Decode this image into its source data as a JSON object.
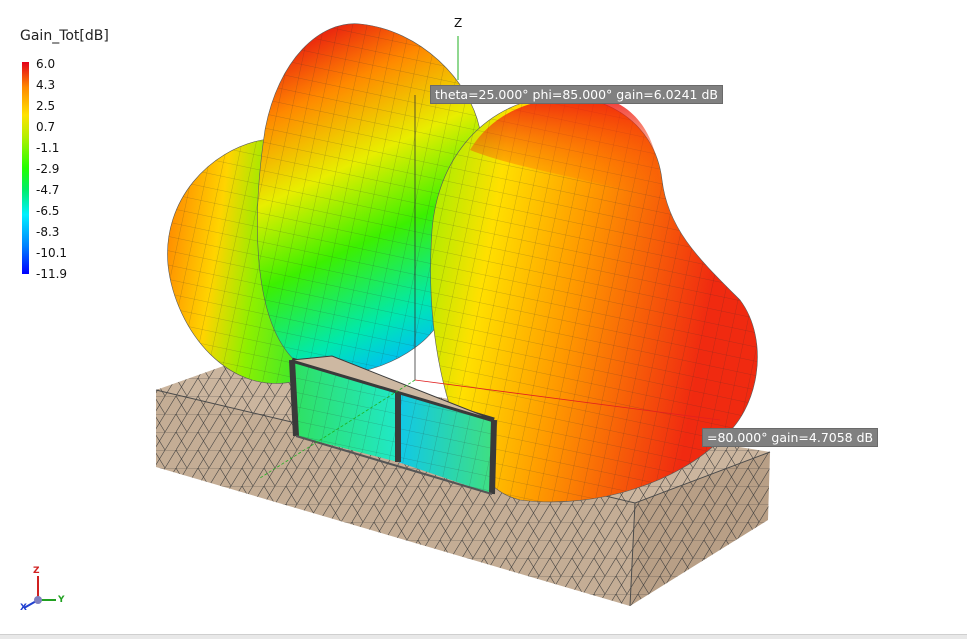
{
  "legend": {
    "title": "Gain_Tot[dB]",
    "values": [
      "6.0",
      "4.3",
      "2.5",
      "0.7",
      "-1.1",
      "-2.9",
      "-4.7",
      "-6.5",
      "-8.3",
      "-10.1",
      "-11.9"
    ]
  },
  "axes": {
    "z_label": "Z",
    "triad": {
      "z": "Z",
      "y": "Y",
      "x": "X"
    }
  },
  "markers": {
    "top": "theta=25.000° phi=85.000° gain=6.0241 dB",
    "right": "=80.000° gain=4.7058 dB"
  },
  "colors": {
    "max": "#e3001b",
    "mid": "#23ff00",
    "min": "#0000ff",
    "substrate": "#c9b39c",
    "tooltip_bg": "#808080"
  }
}
